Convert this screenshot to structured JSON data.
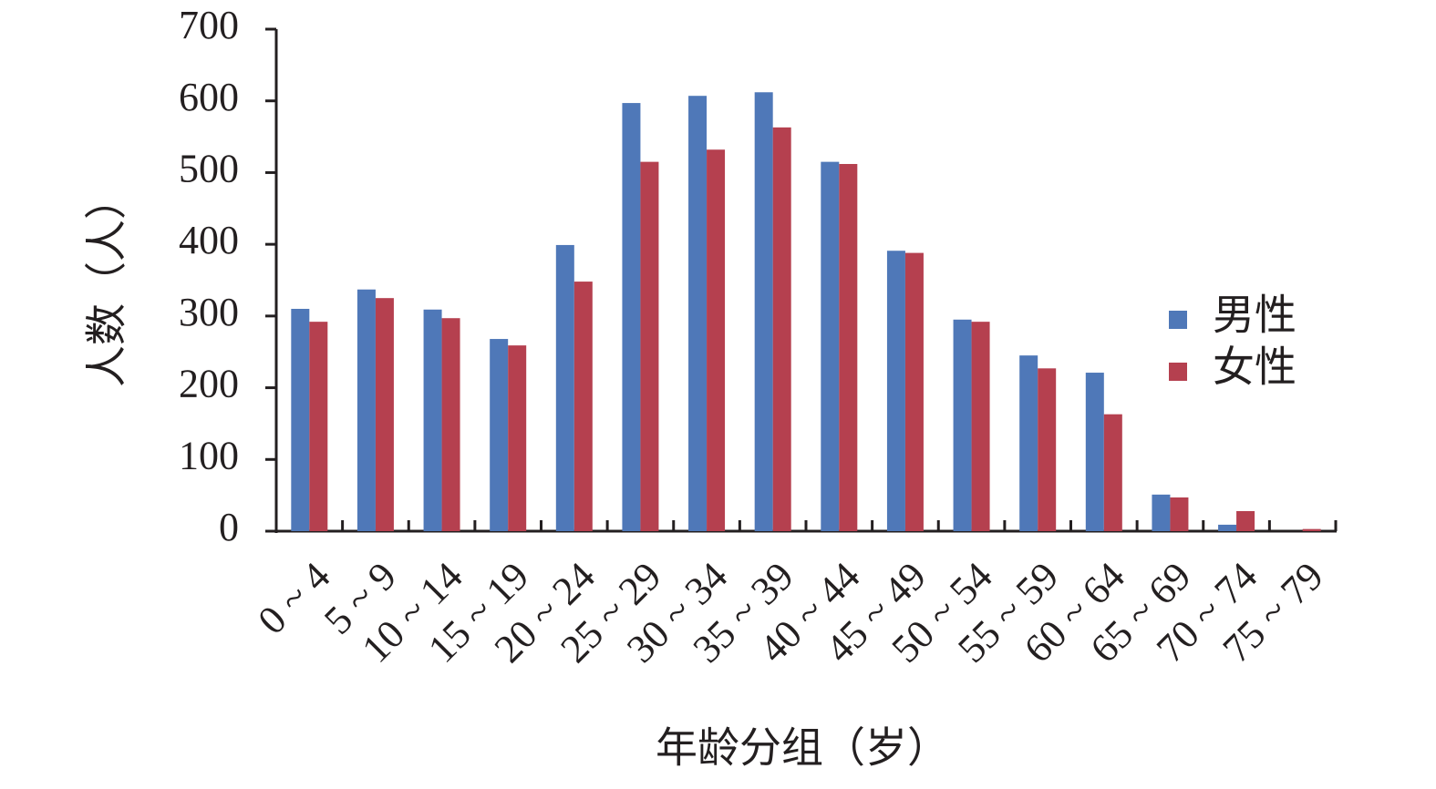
{
  "chart_data": {
    "type": "bar",
    "categories": [
      "0 ~ 4",
      "5 ~ 9",
      "10 ~ 14",
      "15 ~ 19",
      "20 ~ 24",
      "25 ~ 29",
      "30 ~ 34",
      "35 ~ 39",
      "40 ~ 44",
      "45 ~ 49",
      "50 ~ 54",
      "55 ~ 59",
      "60 ~ 64",
      "65 ~ 69",
      "70 ~ 74",
      "75 ~ 79"
    ],
    "series": [
      {
        "name": "男性",
        "color": "#4f78b8",
        "values": [
          310,
          337,
          309,
          268,
          399,
          597,
          607,
          612,
          515,
          391,
          295,
          245,
          221,
          51,
          9,
          0
        ]
      },
      {
        "name": "女性",
        "color": "#b5404f",
        "values": [
          292,
          325,
          297,
          259,
          348,
          515,
          532,
          563,
          512,
          388,
          292,
          227,
          163,
          47,
          28,
          3
        ]
      }
    ],
    "x_label": "年龄分组（岁）",
    "y_label": "人数（人）",
    "ylim": [
      0,
      700
    ],
    "yticks": [
      0,
      100,
      200,
      300,
      400,
      500,
      600,
      700
    ],
    "grid": false,
    "legend": "right"
  }
}
